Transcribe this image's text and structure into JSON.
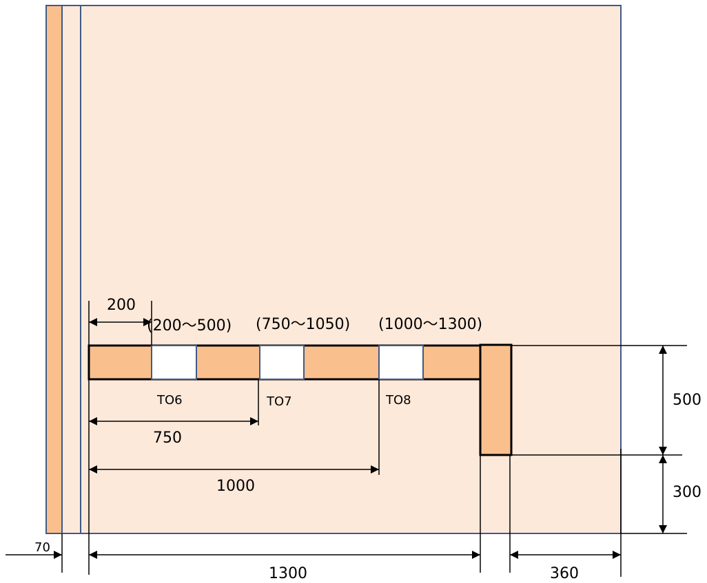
{
  "colors": {
    "panel_fill": "#FDE9DA",
    "member_fill": "#F9C08E",
    "outline": "#3E5A86",
    "opening_fill": "#FFFFFF",
    "line": "#000000"
  },
  "openings": [
    {
      "id": "TO6",
      "label": "TO6",
      "range": "(200～500)"
    },
    {
      "id": "TO7",
      "label": "TO7",
      "range": "(750～1050)"
    },
    {
      "id": "TO8",
      "label": "TO8",
      "range": "(1000～1300)"
    }
  ],
  "dimensions": {
    "d200": "200",
    "d750": "750",
    "d1000": "1000",
    "d1300": "1300",
    "d360": "360",
    "d70": "70",
    "d500": "500",
    "d300": "300"
  }
}
